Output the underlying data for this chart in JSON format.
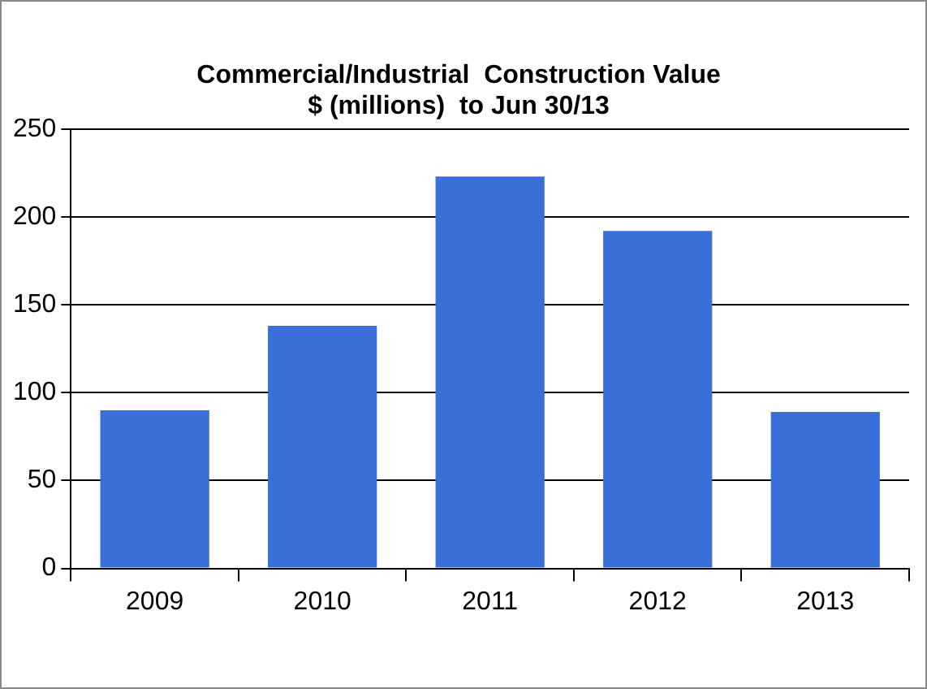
{
  "chart_data": {
    "type": "bar",
    "title": "Commercial/Industrial  Construction Value",
    "subtitle": "$ (millions)  to Jun 30/13",
    "categories": [
      "2009",
      "2010",
      "2011",
      "2012",
      "2013"
    ],
    "values": [
      90,
      138,
      223,
      192,
      89
    ],
    "color": "#3a6fd8",
    "ylim": [
      0,
      250
    ],
    "yticks": [
      0,
      50,
      100,
      150,
      200,
      250
    ],
    "grid": "y",
    "legend": false
  }
}
